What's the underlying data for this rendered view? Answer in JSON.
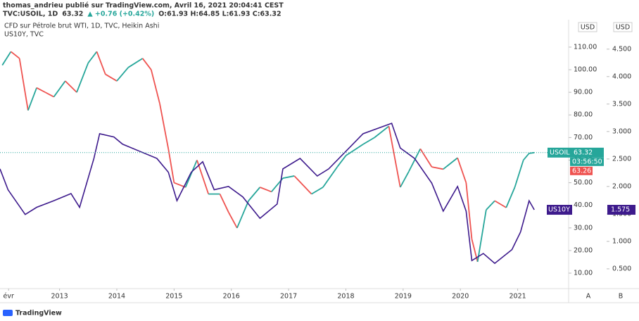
{
  "header": {
    "line1": "thomas_andrieu publié sur TradingView.com, Avril 16, 2021 20:04:41 CEST",
    "symbol": "TVC:USOIL, 1D",
    "price": "63.32",
    "change": "▲ +0.76 (+0.42%)",
    "ohlc": "O:61.93 H:64.85 L:61.93 C:63.32"
  },
  "footer": {
    "brand": "TradingView"
  },
  "chart_data": {
    "type": "line",
    "y_unit": "USD",
    "y2_unit": "USD",
    "xlim": [
      2011.96,
      2021.89
    ],
    "xticks": [
      {
        "value": 2012.11,
        "label": "évr"
      },
      2013,
      2014,
      2015,
      2016,
      2017,
      2018,
      2019,
      2020,
      2021
    ],
    "ylim": [
      3.15,
      121.5
    ],
    "yticks": [
      {
        "value": 10,
        "label": "10.00"
      },
      {
        "value": 20,
        "label": "20.00"
      },
      {
        "value": 30,
        "label": "30.00"
      },
      {
        "value": 40,
        "label": "40.00"
      },
      {
        "value": 50,
        "label": "50.00"
      },
      {
        "value": 60,
        "label": "60.00"
      },
      {
        "value": 70,
        "label": "70.00"
      },
      {
        "value": 80,
        "label": "80.00"
      },
      {
        "value": 90,
        "label": "90.00"
      },
      {
        "value": 100,
        "label": "100.00"
      },
      {
        "value": 110,
        "label": "110.00"
      }
    ],
    "y2lim": [
      0.14,
      5.01
    ],
    "y2ticks": [
      {
        "value": 0.5,
        "label": "0.500"
      },
      {
        "value": 1,
        "label": "1.000"
      },
      {
        "value": 1.5,
        "label": "1.500"
      },
      {
        "value": 2,
        "label": "2.000"
      },
      {
        "value": 2.5,
        "label": "2.500"
      },
      {
        "value": 3,
        "label": "3.000"
      },
      {
        "value": 3.5,
        "label": "3.500"
      },
      {
        "value": 4,
        "label": "4.000"
      },
      {
        "value": 4.5,
        "label": "4.500"
      }
    ],
    "scale_buttons": [
      "A",
      "B"
    ],
    "series": [
      {
        "name": "USOIL",
        "legend": "CFD sur Pétrole brut WTI, 1D, TVC, Heikin Ashi",
        "up_color": "#26a69a",
        "down_color": "#ef5350",
        "x": [
          2012.0,
          2012.15,
          2012.3,
          2012.45,
          2012.6,
          2012.75,
          2012.9,
          2013.1,
          2013.3,
          2013.5,
          2013.65,
          2013.8,
          2014.0,
          2014.2,
          2014.45,
          2014.6,
          2014.75,
          2014.9,
          2015.0,
          2015.2,
          2015.4,
          2015.6,
          2015.8,
          2015.95,
          2016.1,
          2016.3,
          2016.5,
          2016.7,
          2016.9,
          2017.1,
          2017.4,
          2017.6,
          2017.85,
          2018.0,
          2018.3,
          2018.5,
          2018.75,
          2018.95,
          2019.1,
          2019.3,
          2019.5,
          2019.7,
          2019.95,
          2020.1,
          2020.2,
          2020.3,
          2020.45,
          2020.6,
          2020.8,
          2020.95,
          2021.1,
          2021.2,
          2021.29
        ],
        "values": [
          102,
          108,
          105,
          82,
          92,
          90,
          88,
          95,
          90,
          103,
          108,
          98,
          95,
          101,
          105,
          100,
          85,
          65,
          50,
          48,
          60,
          45,
          45,
          37,
          30,
          42,
          48,
          46,
          52,
          53,
          45,
          48,
          57,
          62,
          67,
          70,
          75,
          48,
          55,
          65,
          57,
          56,
          61,
          50,
          25,
          15,
          38,
          42,
          39,
          48,
          60,
          63,
          63.32
        ]
      },
      {
        "name": "US10Y",
        "legend": "US10Y, TVC",
        "color": "#3d1a8c",
        "axis": "y2",
        "x": [
          2011.96,
          2012.1,
          2012.4,
          2012.6,
          2012.9,
          2013.2,
          2013.35,
          2013.6,
          2013.7,
          2013.95,
          2014.1,
          2014.4,
          2014.7,
          2014.9,
          2015.05,
          2015.3,
          2015.5,
          2015.7,
          2015.95,
          2016.2,
          2016.5,
          2016.8,
          2016.9,
          2017.2,
          2017.5,
          2017.7,
          2018.0,
          2018.3,
          2018.8,
          2018.95,
          2019.2,
          2019.5,
          2019.7,
          2019.95,
          2020.1,
          2020.2,
          2020.4,
          2020.6,
          2020.9,
          2021.05,
          2021.2,
          2021.29
        ],
        "values": [
          2.32,
          1.94,
          1.49,
          1.62,
          1.74,
          1.87,
          1.62,
          2.51,
          2.96,
          2.9,
          2.77,
          2.64,
          2.51,
          2.26,
          1.74,
          2.26,
          2.45,
          1.94,
          2.0,
          1.81,
          1.42,
          1.68,
          2.32,
          2.51,
          2.19,
          2.32,
          2.64,
          2.96,
          3.15,
          2.7,
          2.51,
          2.06,
          1.55,
          2.0,
          1.55,
          0.65,
          0.78,
          0.6,
          0.85,
          1.17,
          1.74,
          1.575
        ]
      }
    ],
    "annotations": {
      "countdown": "03:56:50",
      "close": "63.26"
    }
  }
}
